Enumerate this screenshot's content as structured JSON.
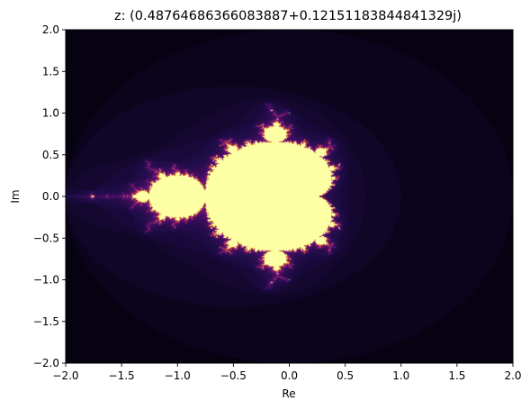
{
  "chart_data": {
    "type": "heatmap",
    "title": "z: (0.48764686366083887+0.12151183844841329j)",
    "xlabel": "Re",
    "ylabel": "Im",
    "xlim": [
      -2.0,
      2.0
    ],
    "ylim": [
      -2.0,
      2.0
    ],
    "xticks": [
      "−2.0",
      "−1.5",
      "−1.0",
      "−0.5",
      "0.0",
      "0.5",
      "1.0",
      "1.5",
      "2.0"
    ],
    "yticks": [
      "2.0",
      "1.5",
      "1.0",
      "0.5",
      "0.0",
      "−0.5",
      "−1.0",
      "−1.5",
      "−2.0"
    ],
    "colormap": "inferno",
    "grid": false,
    "colors": {
      "background": "#030208",
      "inner": "#fcfea4",
      "edge": "#f5a20c"
    }
  }
}
